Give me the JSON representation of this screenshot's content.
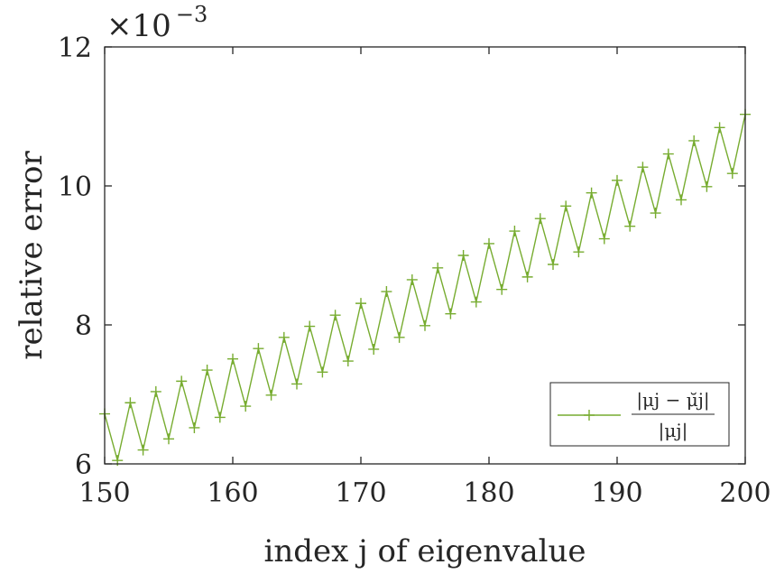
{
  "chart_data": {
    "type": "line",
    "title": "",
    "xlabel": "index j of eigenvalue",
    "ylabel": "relative error",
    "xlim": [
      150,
      200
    ],
    "ylim": [
      6,
      12
    ],
    "y_scale_label": {
      "base": "×10",
      "exponent": "−3"
    },
    "x_ticks": [
      150,
      160,
      170,
      180,
      190,
      200
    ],
    "y_ticks": [
      6,
      8,
      10,
      12
    ],
    "legend": {
      "position": "bottom-right",
      "numerator": "|μj − μ̆j|",
      "denominator": "|μj|"
    },
    "series": [
      {
        "name": "|μj − μ̆j| / |μj|",
        "color": "#77ac30",
        "marker": "+",
        "x": [
          150,
          151,
          152,
          153,
          154,
          155,
          156,
          157,
          158,
          159,
          160,
          161,
          162,
          163,
          164,
          165,
          166,
          167,
          168,
          169,
          170,
          171,
          172,
          173,
          174,
          175,
          176,
          177,
          178,
          179,
          180,
          181,
          182,
          183,
          184,
          185,
          186,
          187,
          188,
          189,
          190,
          191,
          192,
          193,
          194,
          195,
          196,
          197,
          198,
          199,
          200
        ],
        "values": [
          6.72,
          6.05,
          6.88,
          6.2,
          7.04,
          6.36,
          7.19,
          6.52,
          7.35,
          6.67,
          7.51,
          6.83,
          7.66,
          6.99,
          7.82,
          7.15,
          7.98,
          7.32,
          8.14,
          7.48,
          8.31,
          7.65,
          8.48,
          7.82,
          8.65,
          7.99,
          8.82,
          8.16,
          9.0,
          8.33,
          9.17,
          8.51,
          9.35,
          8.69,
          9.53,
          8.87,
          9.71,
          9.05,
          9.9,
          9.24,
          10.08,
          9.42,
          10.27,
          9.61,
          10.46,
          9.8,
          10.65,
          9.99,
          10.84,
          10.18,
          11.03
        ]
      }
    ]
  }
}
